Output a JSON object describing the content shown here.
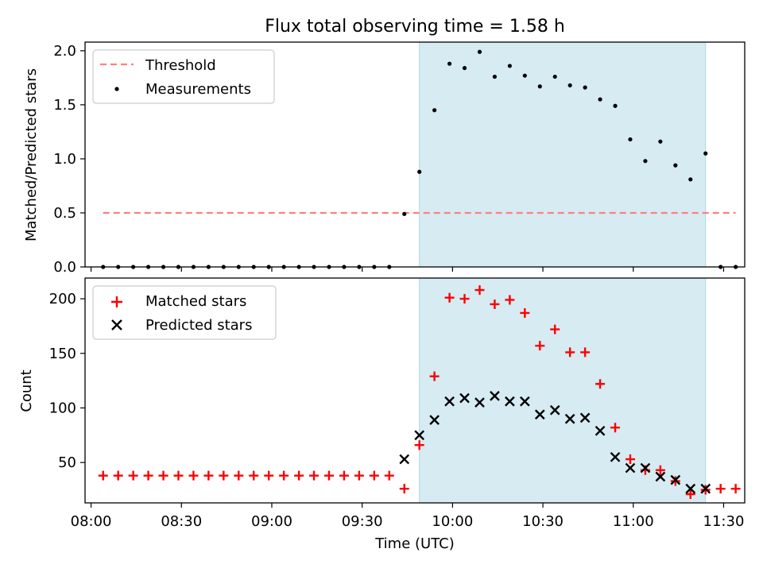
{
  "chart_data": [
    {
      "type": "scatter",
      "title": "Flux total observing time = 1.58 h",
      "xlabel": "",
      "ylabel": "Matched/Predicted stars",
      "xlim": [
        "07:58",
        "11:37"
      ],
      "ylim": [
        0,
        2.08
      ],
      "yticks": [
        "0.0",
        "0.5",
        "1.0",
        "1.5",
        "2.0"
      ],
      "grid": false,
      "legend": {
        "placement": "top-left",
        "entries": [
          "Threshold",
          "Measurements"
        ]
      },
      "shaded_region": {
        "x_start": "09:49",
        "x_end": "11:24",
        "color": "#add8e6"
      },
      "threshold": {
        "name": "Threshold",
        "value": 0.5,
        "x_start": "08:04",
        "x_end": "11:34",
        "color": "#ff7f7f"
      },
      "series": [
        {
          "name": "Measurements",
          "color": "#000000",
          "x": [
            "08:04",
            "08:09",
            "08:14",
            "08:19",
            "08:24",
            "08:29",
            "08:34",
            "08:39",
            "08:44",
            "08:49",
            "08:54",
            "08:59",
            "09:04",
            "09:09",
            "09:14",
            "09:19",
            "09:24",
            "09:29",
            "09:34",
            "09:39",
            "09:44",
            "09:49",
            "09:54",
            "09:59",
            "10:04",
            "10:09",
            "10:14",
            "10:19",
            "10:24",
            "10:29",
            "10:34",
            "10:39",
            "10:44",
            "10:49",
            "10:54",
            "10:59",
            "11:04",
            "11:09",
            "11:14",
            "11:19",
            "11:24",
            "11:29",
            "11:34"
          ],
          "y": [
            0,
            0,
            0,
            0,
            0,
            0,
            0,
            0,
            0,
            0,
            0,
            0,
            0,
            0,
            0,
            0,
            0,
            0,
            0,
            0,
            0.49,
            0.88,
            1.45,
            1.88,
            1.84,
            1.99,
            1.76,
            1.86,
            1.77,
            1.67,
            1.76,
            1.68,
            1.66,
            1.55,
            1.49,
            1.18,
            0.98,
            1.16,
            0.94,
            0.81,
            1.05,
            0,
            0
          ]
        }
      ]
    },
    {
      "type": "scatter",
      "title": "",
      "xlabel": "Time (UTC)",
      "ylabel": "Count",
      "xlim": [
        "07:58",
        "11:37"
      ],
      "ylim": [
        13,
        219
      ],
      "xticks": [
        "08:00",
        "08:30",
        "09:00",
        "09:30",
        "10:00",
        "10:30",
        "11:00",
        "11:30"
      ],
      "yticks": [
        "50",
        "100",
        "150",
        "200"
      ],
      "grid": false,
      "legend": {
        "placement": "top-left",
        "entries": [
          "Matched stars",
          "Predicted stars"
        ]
      },
      "shaded_region": {
        "x_start": "09:49",
        "x_end": "11:24",
        "color": "#add8e6"
      },
      "series": [
        {
          "name": "Matched stars",
          "marker": "+",
          "color": "#ff0000",
          "x": [
            "08:04",
            "08:09",
            "08:14",
            "08:19",
            "08:24",
            "08:29",
            "08:34",
            "08:39",
            "08:44",
            "08:49",
            "08:54",
            "08:59",
            "09:04",
            "09:09",
            "09:14",
            "09:19",
            "09:24",
            "09:29",
            "09:34",
            "09:39",
            "09:44",
            "09:49",
            "09:54",
            "09:59",
            "10:04",
            "10:09",
            "10:14",
            "10:19",
            "10:24",
            "10:29",
            "10:34",
            "10:39",
            "10:44",
            "10:49",
            "10:54",
            "10:59",
            "11:04",
            "11:09",
            "11:14",
            "11:19",
            "11:24",
            "11:29",
            "11:34"
          ],
          "y": [
            38,
            38,
            38,
            38,
            38,
            38,
            38,
            38,
            38,
            38,
            38,
            38,
            38,
            38,
            38,
            38,
            38,
            38,
            38,
            38,
            26,
            66,
            129,
            201,
            200,
            208,
            195,
            199,
            187,
            157,
            172,
            151,
            151,
            122,
            82,
            53,
            43,
            43,
            33,
            21,
            25,
            26,
            26
          ]
        },
        {
          "name": "Predicted stars",
          "marker": "x",
          "color": "#000000",
          "x": [
            "09:44",
            "09:49",
            "09:54",
            "09:59",
            "10:04",
            "10:09",
            "10:14",
            "10:19",
            "10:24",
            "10:29",
            "10:34",
            "10:39",
            "10:44",
            "10:49",
            "10:54",
            "10:59",
            "11:04",
            "11:09",
            "11:14",
            "11:19",
            "11:24"
          ],
          "y": [
            53,
            75,
            89,
            106,
            109,
            105,
            111,
            106,
            106,
            94,
            98,
            90,
            91,
            79,
            55,
            45,
            45,
            37,
            34,
            26,
            26
          ]
        }
      ]
    }
  ]
}
